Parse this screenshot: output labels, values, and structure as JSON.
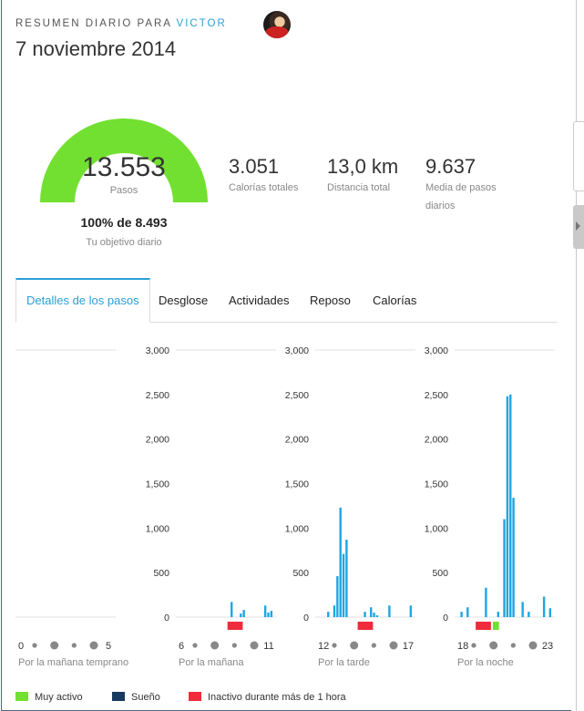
{
  "header": {
    "label_prefix": "RESUMEN DIARIO PARA",
    "user_name": "VICTOR",
    "date": "7 noviembre 2014"
  },
  "gauge": {
    "value": "13.553",
    "unit_label": "Pasos",
    "goal_percent": "100% de 8.493",
    "goal_label": "Tu objetivo diario",
    "fill_fraction": 1.0,
    "color": "#72e030"
  },
  "stats": [
    {
      "value": "3.051",
      "label": "Calorías totales"
    },
    {
      "value": "13,0 km",
      "label": "Distancia total"
    },
    {
      "value": "9.637",
      "label_line1": "Media de pasos",
      "label_line2": "diarios"
    }
  ],
  "tabs": [
    {
      "label": "Detalles de los pasos",
      "active": true
    },
    {
      "label": "Desglose",
      "active": false
    },
    {
      "label": "Actividades",
      "active": false
    },
    {
      "label": "Reposo",
      "active": false
    },
    {
      "label": "Calorías",
      "active": false
    }
  ],
  "chart_data": {
    "type": "bar",
    "ylim": [
      0,
      3000
    ],
    "yticks": [
      "0",
      "500",
      "1,000",
      "1,500",
      "2,000",
      "2,500",
      "3,000"
    ],
    "bar_color": "#1fa6e3",
    "panels": [
      {
        "name": "Por la mañana temprano",
        "start_label": "0",
        "end_label": "5",
        "values": []
      },
      {
        "name": "Por la mañana",
        "start_label": "6",
        "end_label": "11",
        "values": [
          0,
          0,
          0,
          0,
          0,
          0,
          0,
          0,
          0,
          0,
          0,
          0,
          0,
          0,
          0,
          0,
          0,
          170,
          0,
          0,
          40,
          80,
          0,
          0,
          0,
          0,
          0,
          0,
          130,
          50,
          70
        ]
      },
      {
        "name": "Por la tarde",
        "start_label": "12",
        "end_label": "17",
        "values": [
          0,
          0,
          0,
          60,
          0,
          130,
          460,
          1230,
          710,
          870,
          0,
          0,
          0,
          0,
          0,
          60,
          0,
          110,
          50,
          20,
          0,
          0,
          0,
          130,
          0,
          0,
          0,
          0,
          0,
          0,
          130
        ]
      },
      {
        "name": "Por la noche",
        "start_label": "18",
        "end_label": "23",
        "values": [
          0,
          60,
          0,
          110,
          0,
          0,
          0,
          0,
          0,
          330,
          0,
          0,
          0,
          60,
          0,
          1100,
          2480,
          2500,
          1340,
          0,
          0,
          170,
          0,
          60,
          0,
          0,
          0,
          0,
          230,
          0,
          100
        ]
      }
    ],
    "inactive_marks": [
      {
        "panel": 1,
        "from": 16,
        "to": 20
      },
      {
        "panel": 2,
        "from": 13,
        "to": 17
      },
      {
        "panel": 3,
        "from": 6,
        "to": 10
      }
    ],
    "active_marks": [
      {
        "panel": 3,
        "from": 11,
        "to": 12
      }
    ],
    "colors": {
      "very_active": "#72e030",
      "sleep": "#173a5e",
      "inactive": "#f02b3b"
    }
  },
  "legend": [
    {
      "label": "Muy activo",
      "color": "#72e030"
    },
    {
      "label": "Sueño",
      "color": "#173a5e"
    },
    {
      "label": "Inactivo durante más de 1 hora",
      "color": "#f02b3b"
    }
  ]
}
